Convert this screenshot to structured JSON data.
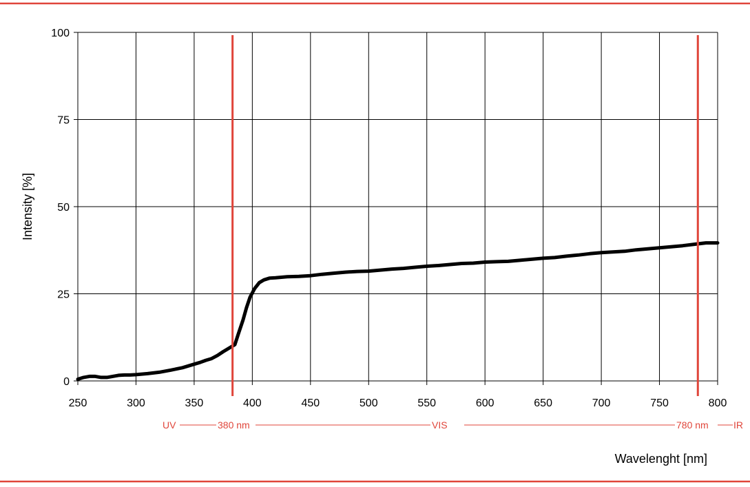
{
  "chart_data": {
    "type": "line",
    "title": "",
    "xlabel": "Wavelenght [nm]",
    "ylabel": "Intensity [%]",
    "xlim": [
      250,
      800
    ],
    "ylim": [
      0,
      100
    ],
    "x_ticks": [
      250,
      300,
      350,
      400,
      450,
      500,
      550,
      600,
      650,
      700,
      750,
      800
    ],
    "y_ticks": [
      0,
      25,
      50,
      75,
      100
    ],
    "grid": true,
    "series": [
      {
        "x": [
          250,
          255,
          260,
          265,
          270,
          275,
          280,
          285,
          290,
          295,
          300,
          310,
          320,
          330,
          340,
          350,
          355,
          360,
          365,
          370,
          375,
          380,
          385,
          388,
          392,
          395,
          398,
          402,
          406,
          410,
          415,
          420,
          430,
          440,
          450,
          460,
          470,
          480,
          490,
          500,
          510,
          520,
          530,
          540,
          550,
          560,
          570,
          580,
          590,
          600,
          610,
          620,
          630,
          640,
          650,
          660,
          670,
          680,
          690,
          700,
          710,
          720,
          730,
          740,
          750,
          760,
          770,
          780,
          790,
          800
        ],
        "values": [
          0.5,
          1.0,
          1.3,
          1.3,
          1.0,
          1.0,
          1.3,
          1.6,
          1.7,
          1.7,
          1.8,
          2.1,
          2.5,
          3.1,
          3.8,
          4.8,
          5.3,
          5.9,
          6.4,
          7.3,
          8.4,
          9.4,
          10.4,
          13.5,
          17.5,
          21.0,
          24.0,
          26.5,
          28.2,
          29.0,
          29.5,
          29.6,
          29.9,
          30.0,
          30.2,
          30.6,
          30.9,
          31.2,
          31.4,
          31.5,
          31.8,
          32.1,
          32.3,
          32.6,
          32.9,
          33.1,
          33.4,
          33.7,
          33.8,
          34.1,
          34.2,
          34.3,
          34.6,
          34.9,
          35.2,
          35.4,
          35.8,
          36.1,
          36.5,
          36.8,
          37.0,
          37.2,
          37.6,
          37.9,
          38.2,
          38.5,
          38.8,
          39.2,
          39.6,
          39.6
        ]
      }
    ],
    "markers": [
      {
        "x": 383,
        "color": "#e0453a"
      },
      {
        "x": 783,
        "color": "#e0453a"
      }
    ],
    "band_labels": {
      "uv": "UV",
      "nm380": "380 nm",
      "vis": "VIS",
      "nm780": "780 nm",
      "ir": "IR"
    },
    "colors": {
      "accent": "#e0453a",
      "line": "#000000",
      "grid": "#000000"
    }
  }
}
